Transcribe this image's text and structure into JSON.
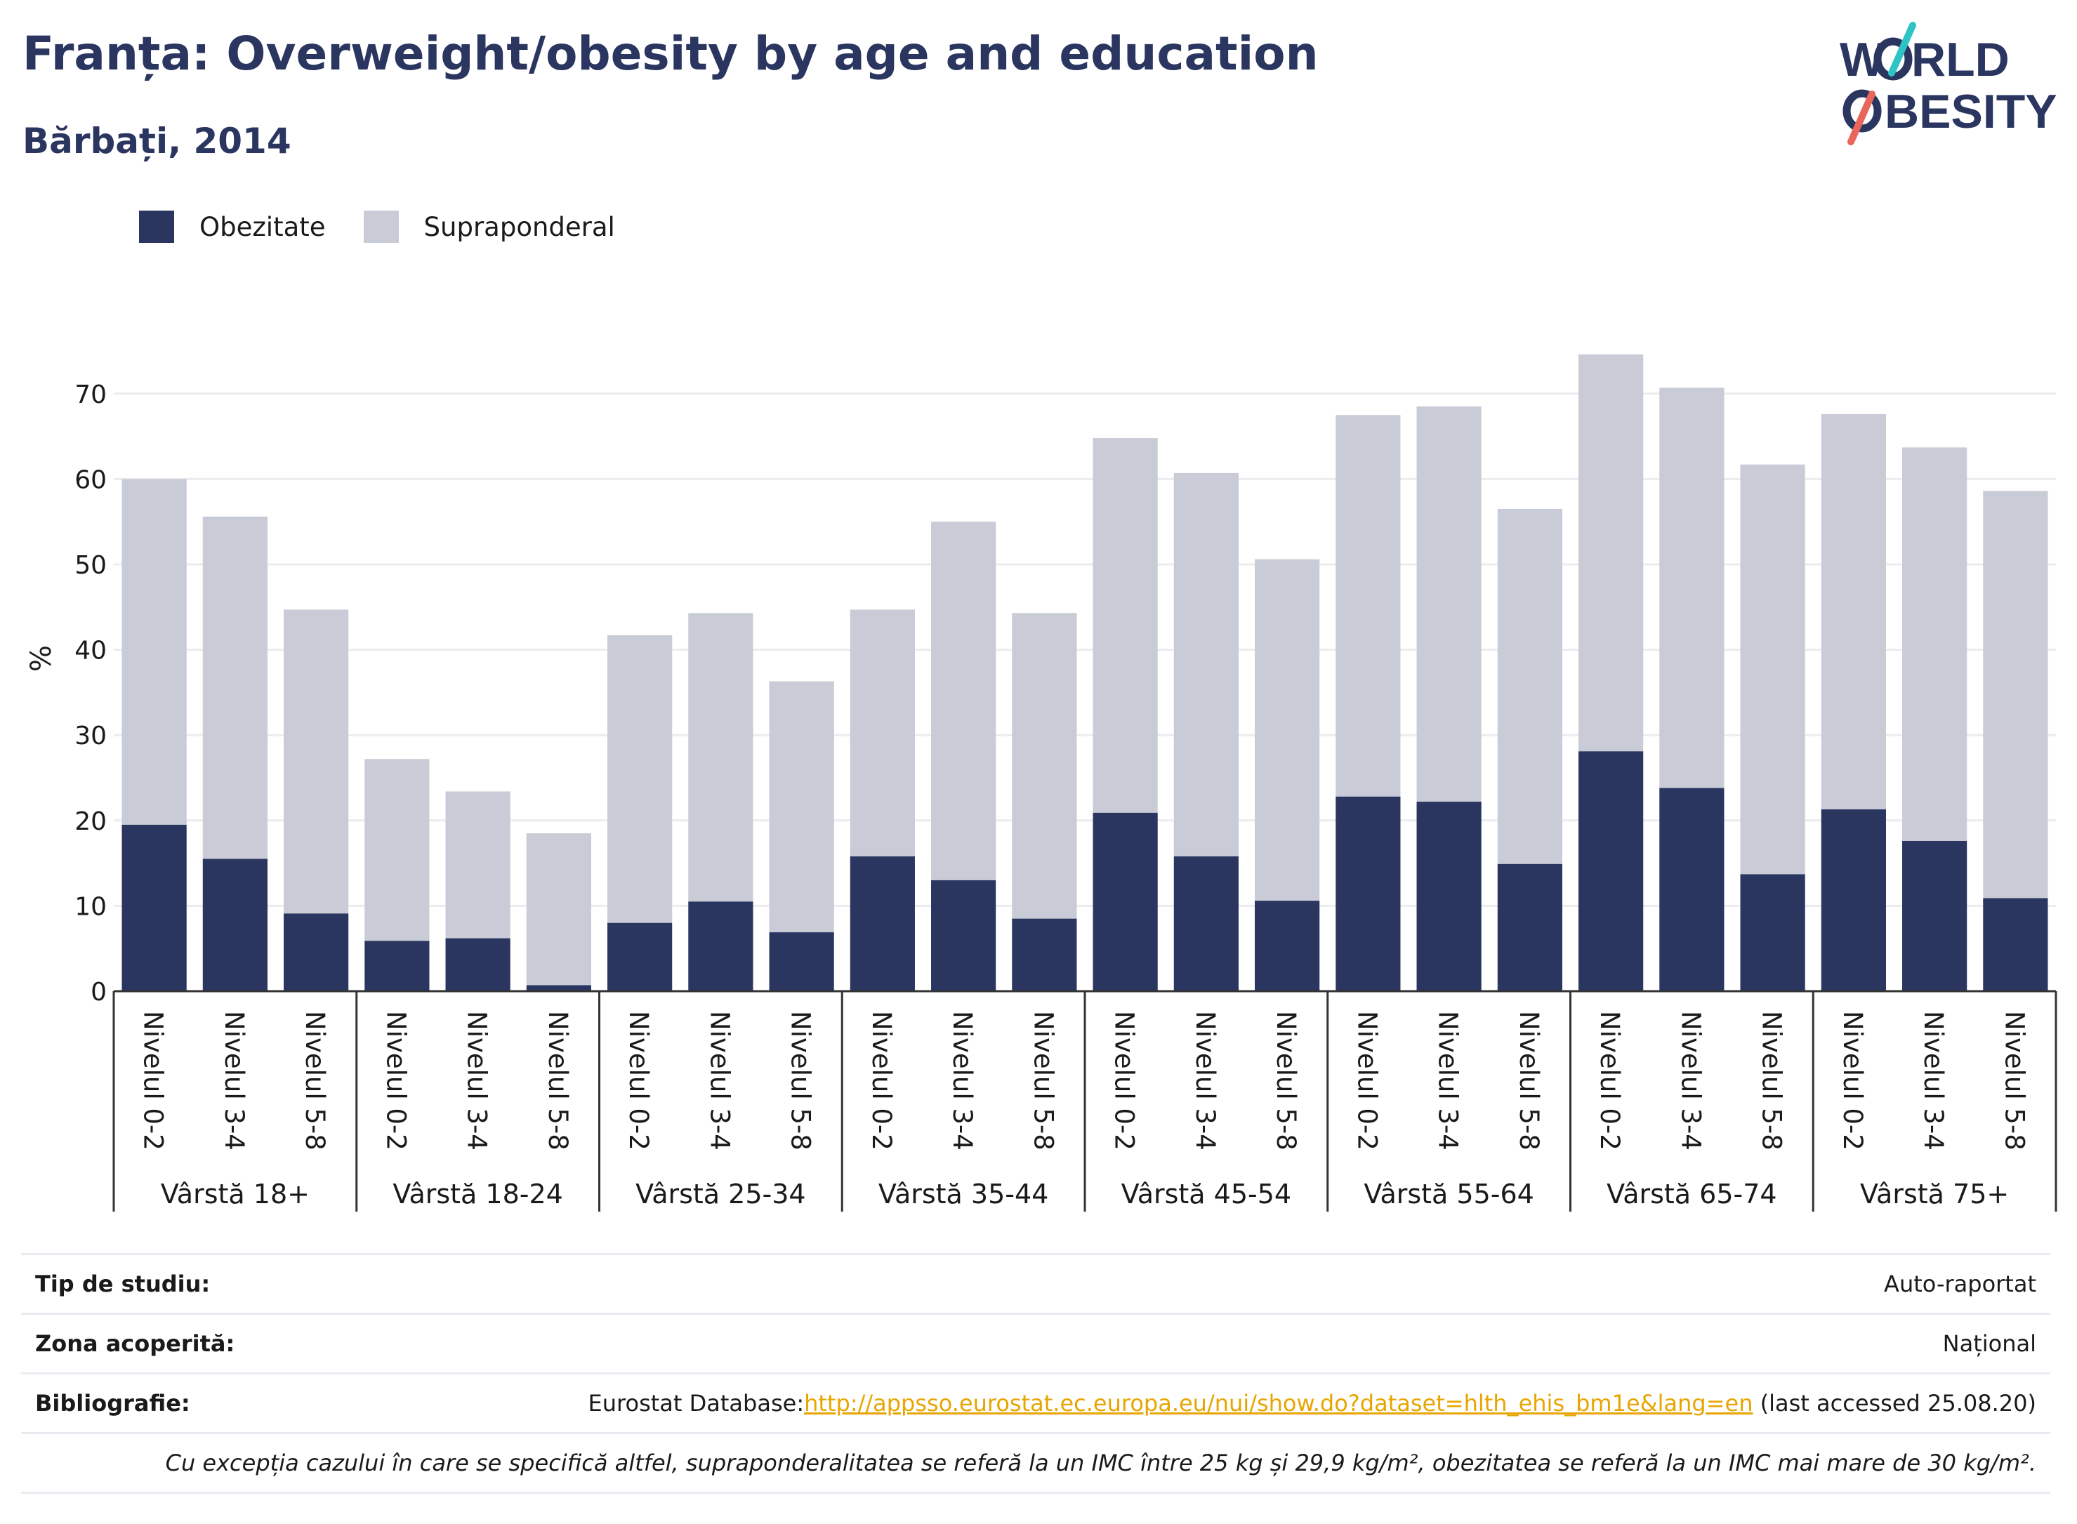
{
  "title": "Franța: Overweight/obesity by age and education",
  "subtitle": "Bărbați, 2014",
  "logo": {
    "line1": "W",
    "line1b": "RLD",
    "line2": "BESITY",
    "icon": "world-obesity-logo",
    "accent_teal": "#2ec4c6",
    "accent_red": "#e8675a"
  },
  "colors": {
    "obezitate": "#2a3560",
    "supraponderal": "#c9cbd6",
    "text": "#2a3560"
  },
  "legend": [
    {
      "label": "Obezitate",
      "color": "#2a3560"
    },
    {
      "label": "Supraponderal",
      "color": "#c9cbd6"
    }
  ],
  "chart_data": {
    "type": "bar",
    "stacked": true,
    "ylabel": "%",
    "ylim": [
      0,
      75
    ],
    "yticks": [
      0,
      10,
      20,
      30,
      40,
      50,
      60,
      70
    ],
    "grid": true,
    "legend_position": "top-left",
    "groups": [
      "Vârstă 18+",
      "Vârstă 18-24",
      "Vârstă 25-34",
      "Vârstă 35-44",
      "Vârstă 45-54",
      "Vârstă 55-64",
      "Vârstă 65-74",
      "Vârstă 75+"
    ],
    "subcategories": [
      "Nivelul 0-2",
      "Nivelul 3-4",
      "Nivelul 5-8"
    ],
    "series": [
      {
        "name": "Obezitate",
        "values": [
          19.5,
          15.5,
          9.1,
          5.9,
          6.2,
          0.7,
          8.0,
          10.5,
          6.9,
          15.8,
          13.0,
          8.5,
          20.9,
          15.8,
          10.6,
          22.8,
          22.2,
          14.9,
          28.1,
          23.8,
          13.7,
          21.3,
          17.6,
          10.9
        ]
      },
      {
        "name": "Supraponderal",
        "values": [
          40.5,
          40.1,
          35.6,
          21.3,
          17.2,
          17.8,
          33.7,
          33.8,
          29.4,
          28.9,
          42.0,
          35.8,
          43.9,
          44.9,
          40.0,
          44.7,
          46.3,
          41.6,
          46.5,
          46.9,
          48.0,
          46.3,
          46.1,
          47.7
        ]
      }
    ]
  },
  "info": {
    "study_type_label": "Tip de studiu:",
    "study_type_value": "Auto-raportat",
    "coverage_label": "Zona acoperită:",
    "coverage_value": "Național",
    "biblio_label": "Bibliografie:",
    "biblio_prefix": "Eurostat Database:",
    "biblio_link": "http://appsso.eurostat.ec.europa.eu/nui/show.do?dataset=hlth_ehis_bm1e&lang=en",
    "biblio_suffix": " (last accessed 25.08.20)",
    "note": "Cu excepția cazului în care se specifică altfel, supraponderalitatea se referă la un IMC între 25 kg și 29,9 kg/m², obezitatea se referă la un IMC mai mare de 30 kg/m²."
  }
}
